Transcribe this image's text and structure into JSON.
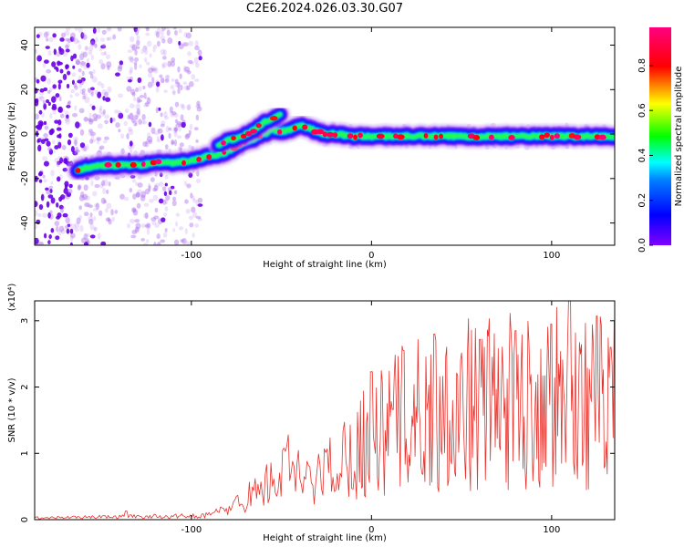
{
  "chart_data": [
    {
      "type": "heatmap",
      "title": "C2E6.2024.026.03.30.G07",
      "xlabel": "Height of straight line (km)",
      "ylabel": "Frequency (Hz)",
      "xlim": [
        -187,
        135
      ],
      "ylim": [
        -50,
        48
      ],
      "xticks": [
        -100,
        0,
        100
      ],
      "yticks": [
        -40,
        -20,
        0,
        20,
        40
      ],
      "colorbar": {
        "label": "Normalized spectral amplitude",
        "range": [
          0.0,
          0.97
        ],
        "ticks": [
          "0.0",
          "0.2",
          "0.4",
          "0.6",
          "0.8"
        ],
        "colormap": [
          "#8000ff",
          "#0000ff",
          "#00ffff",
          "#00ff00",
          "#ffff00",
          "#ff0000",
          "#ff0080"
        ]
      },
      "ridge_main": {
        "x": [
          -163,
          -150,
          -140,
          -130,
          -120,
          -110,
          -100,
          -95,
          -90,
          -85,
          -80,
          -75,
          -70,
          -65,
          -60,
          -55,
          -50,
          -45,
          -40,
          -35,
          -30,
          -25,
          -20,
          -10,
          0,
          20,
          40,
          60,
          80,
          100,
          120,
          135
        ],
        "freq": [
          -16,
          -14,
          -14,
          -14,
          -13,
          -13,
          -12,
          -11,
          -10,
          -9,
          -8,
          -5,
          -3,
          -2,
          0,
          2,
          1,
          2,
          4,
          3,
          1,
          0,
          0,
          -1,
          -1,
          -1,
          -1,
          -1,
          -1,
          -1,
          -1,
          -1
        ]
      },
      "ridge_secondary": {
        "x": [
          -85,
          -80,
          -75,
          -70,
          -65,
          -60,
          -55,
          -50
        ],
        "freq": [
          -5,
          -3,
          -2,
          0,
          2,
          5,
          7,
          9
        ]
      }
    },
    {
      "type": "line",
      "xlabel": "Height of straight line (km)",
      "ylabel": "SNR (10 * v/v)",
      "multiplier": "(x10⁴)",
      "xlim": [
        -187,
        135
      ],
      "ylim": [
        0,
        3.3
      ],
      "xticks": [
        -100,
        0,
        100
      ],
      "yticks": [
        0,
        1,
        2,
        3
      ],
      "line_color": "#e8322c",
      "envelope": {
        "x": [
          -187,
          -140,
          -100,
          -90,
          -80,
          -70,
          -60,
          -50,
          -45,
          -40,
          -35,
          -30,
          -25,
          -20,
          -15,
          -10,
          -5,
          0,
          5,
          10,
          20,
          30,
          40,
          50,
          60,
          80,
          100,
          110,
          120,
          135
        ],
        "y": [
          0.03,
          0.05,
          0.06,
          0.08,
          0.18,
          0.35,
          0.55,
          0.75,
          0.85,
          0.7,
          0.6,
          0.72,
          0.85,
          0.95,
          1.05,
          1.2,
          1.4,
          1.65,
          1.55,
          1.75,
          1.85,
          1.95,
          2.05,
          2.1,
          2.15,
          2.15,
          2.2,
          2.25,
          2.15,
          2.1
        ]
      },
      "peaks": [
        {
          "x": -136,
          "y": 0.13
        },
        {
          "x": -46,
          "y": 1.28
        },
        {
          "x": -35,
          "y": 0.82
        },
        {
          "x": 0,
          "y": 2.23
        },
        {
          "x": 18,
          "y": 2.55
        },
        {
          "x": 35,
          "y": 2.8
        },
        {
          "x": 60,
          "y": 2.72
        },
        {
          "x": 80,
          "y": 2.85
        },
        {
          "x": 100,
          "y": 2.95
        },
        {
          "x": 110,
          "y": 3.3
        },
        {
          "x": 125,
          "y": 3.07
        },
        {
          "x": 133,
          "y": 2.6
        }
      ]
    }
  ]
}
